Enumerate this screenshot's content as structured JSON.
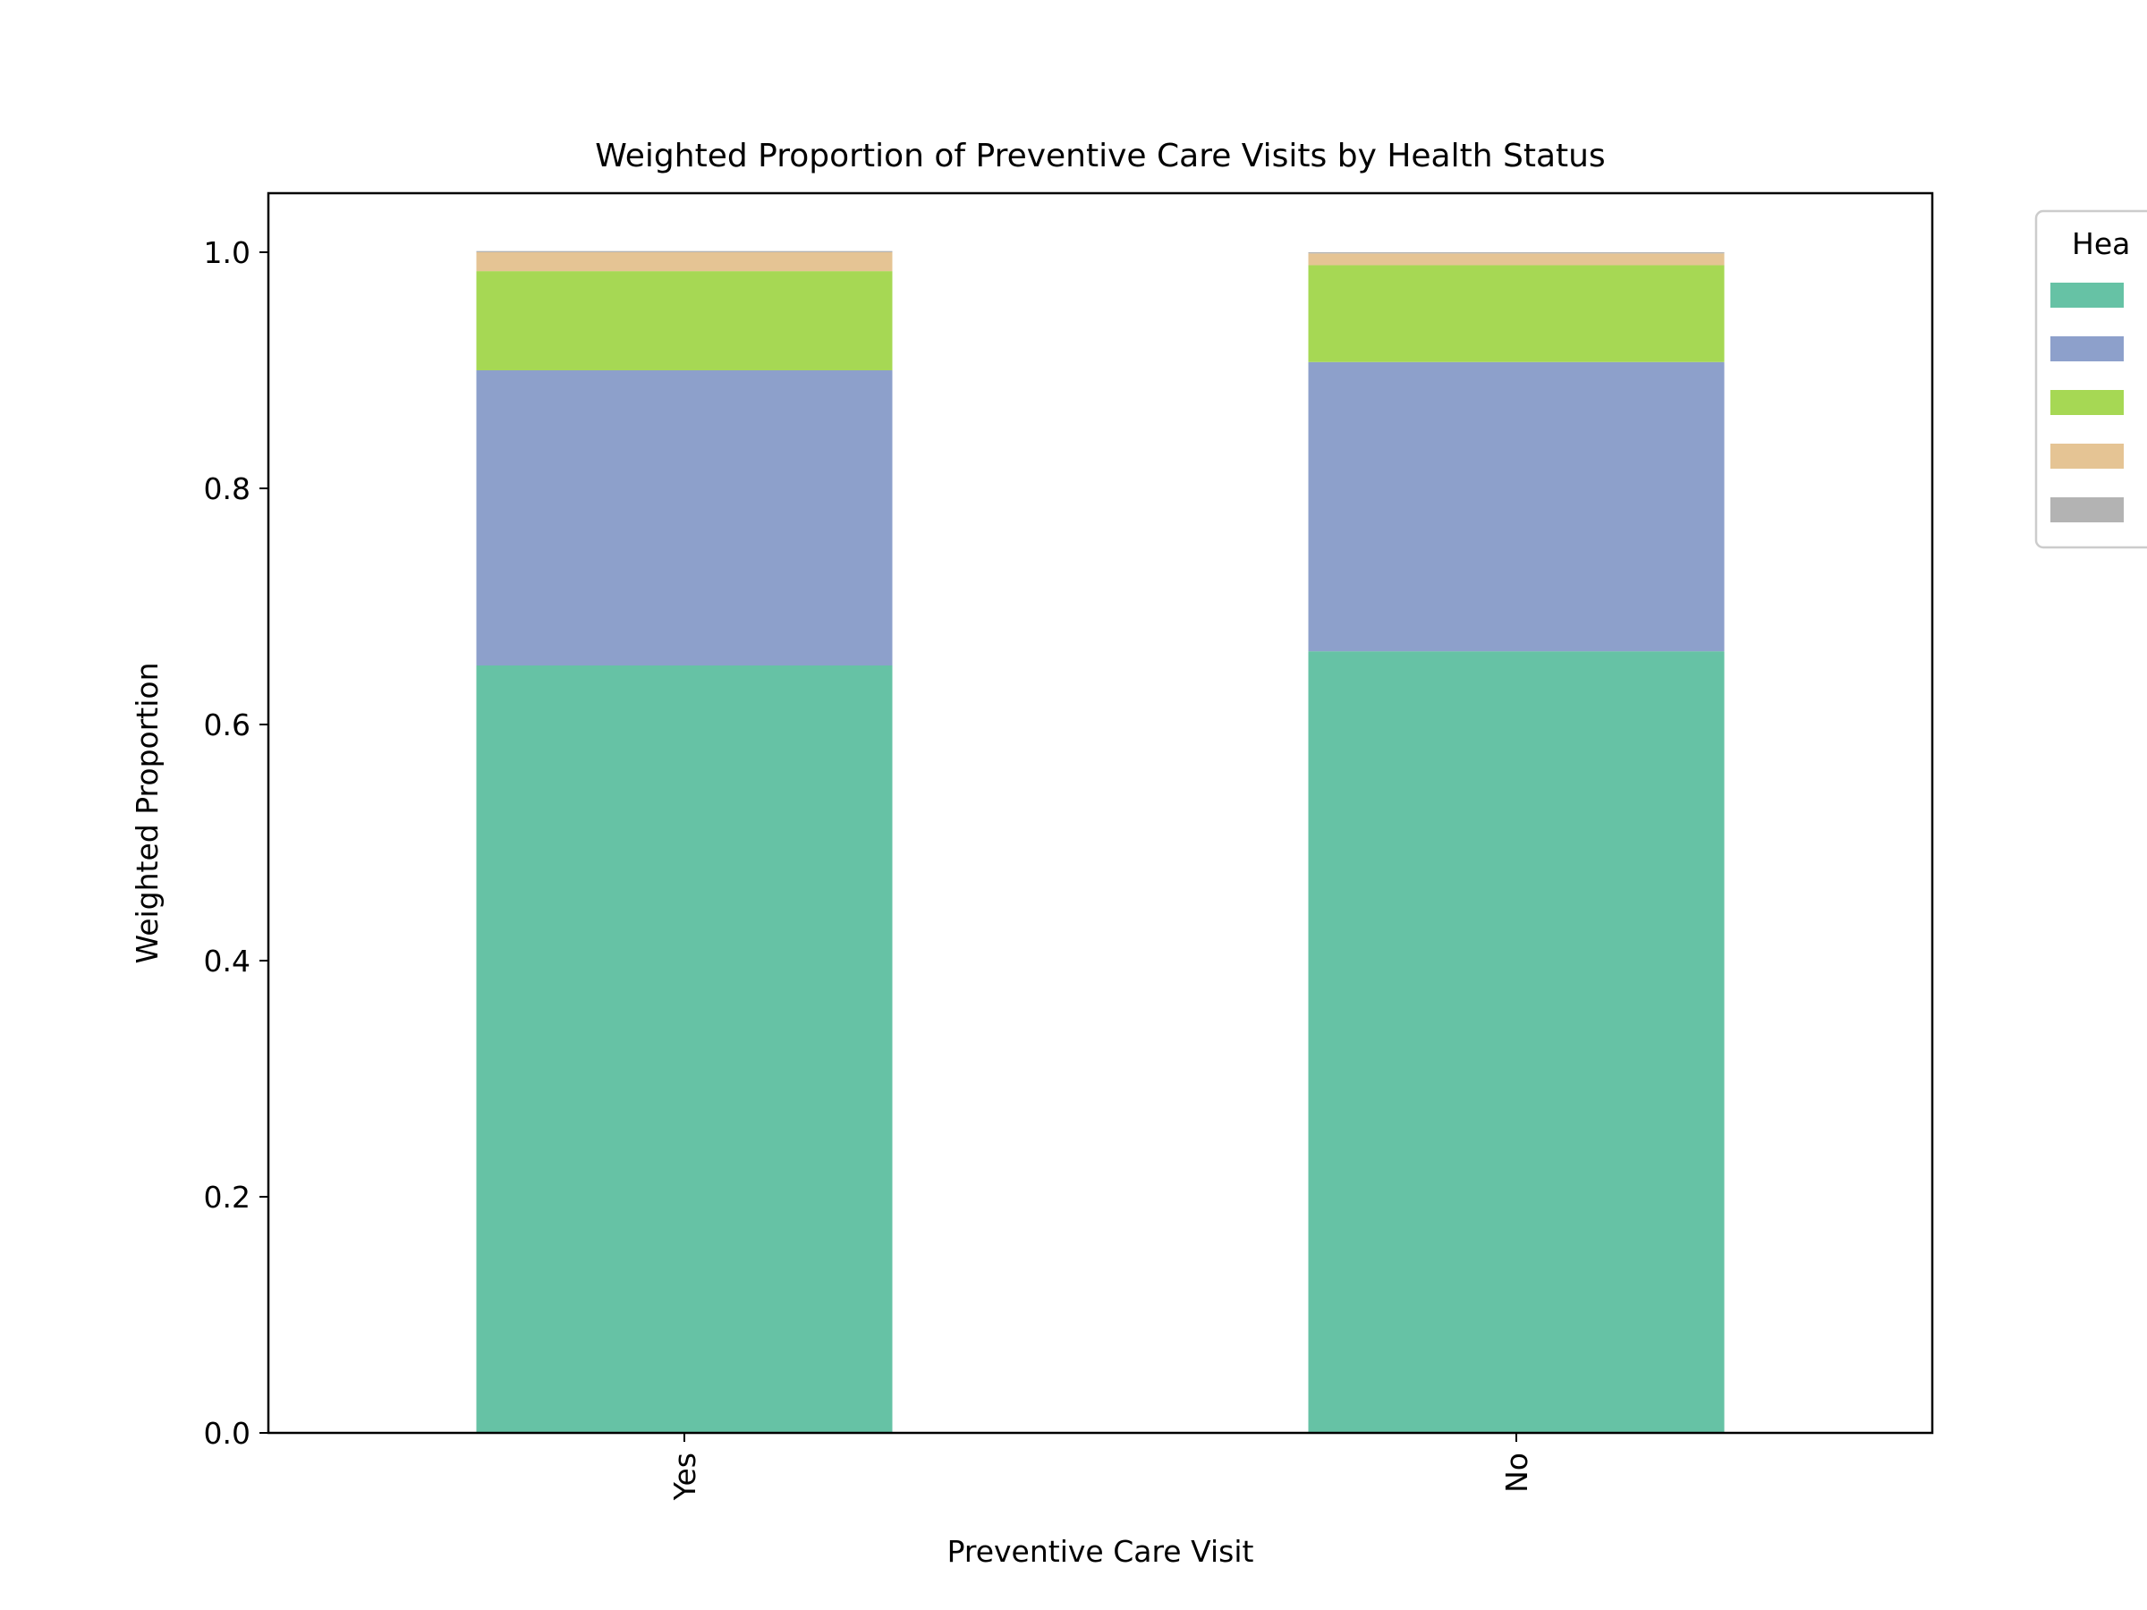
{
  "chart_data": {
    "type": "bar",
    "stacked": true,
    "title": "Weighted Proportion of Preventive Care Visits by Health Status",
    "xlabel": "Preventive Care Visit",
    "ylabel": "Weighted Proportion",
    "categories": [
      "Yes",
      "No"
    ],
    "ylim": [
      0,
      1.05
    ],
    "yticks": [
      "0.0",
      "0.2",
      "0.4",
      "0.6",
      "0.8",
      "1.0"
    ],
    "grid": false,
    "legend": {
      "title": "Hea",
      "placement": "right, outside (clipped)"
    },
    "series": [
      {
        "values": [
          0.65,
          0.662
        ],
        "color": "#66c2a5"
      },
      {
        "values": [
          0.25,
          0.245
        ],
        "color": "#8da0cb"
      },
      {
        "values": [
          0.084,
          0.082
        ],
        "color": "#a6d854"
      },
      {
        "values": [
          0.016,
          0.01
        ],
        "color": "#e5c494"
      },
      {
        "values": [
          0.001,
          0.001
        ],
        "color": "#b3b3b3"
      }
    ]
  }
}
